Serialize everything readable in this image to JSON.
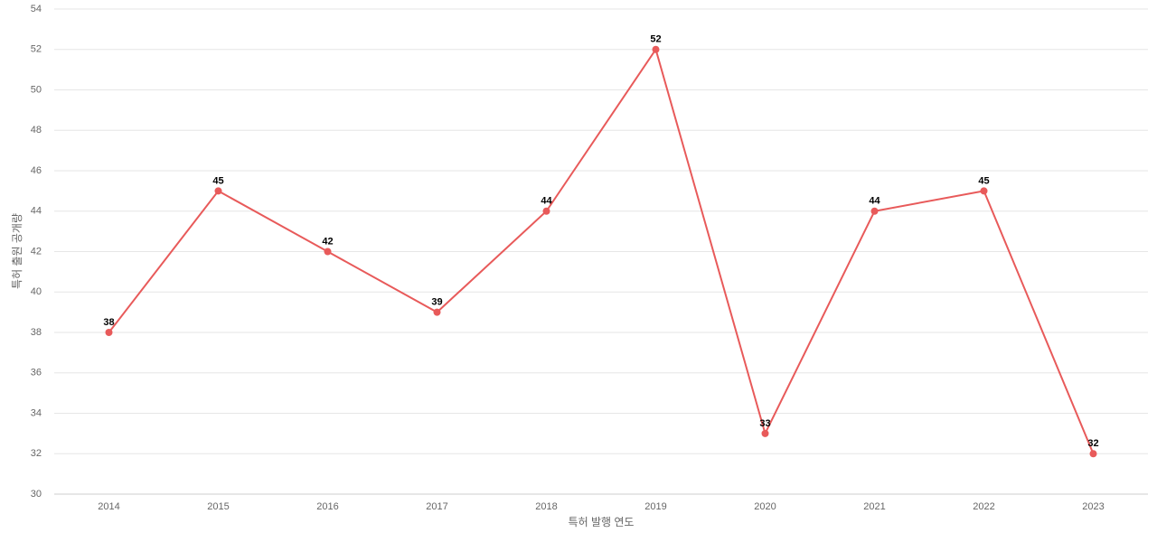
{
  "chart_data": {
    "type": "line",
    "x_label": "특허 발행 연도",
    "y_label": "특허 출원 공개량",
    "categories": [
      "2014",
      "2015",
      "2016",
      "2017",
      "2018",
      "2019",
      "2020",
      "2021",
      "2022",
      "2023"
    ],
    "series": [
      {
        "color": "#e85a5a",
        "values": [
          38,
          45,
          42,
          39,
          44,
          52,
          33,
          44,
          45,
          32
        ]
      }
    ],
    "ylim": [
      30,
      54
    ],
    "yticks": [
      30,
      32,
      34,
      36,
      38,
      40,
      42,
      44,
      46,
      48,
      50,
      52,
      54
    ],
    "grid": true
  }
}
